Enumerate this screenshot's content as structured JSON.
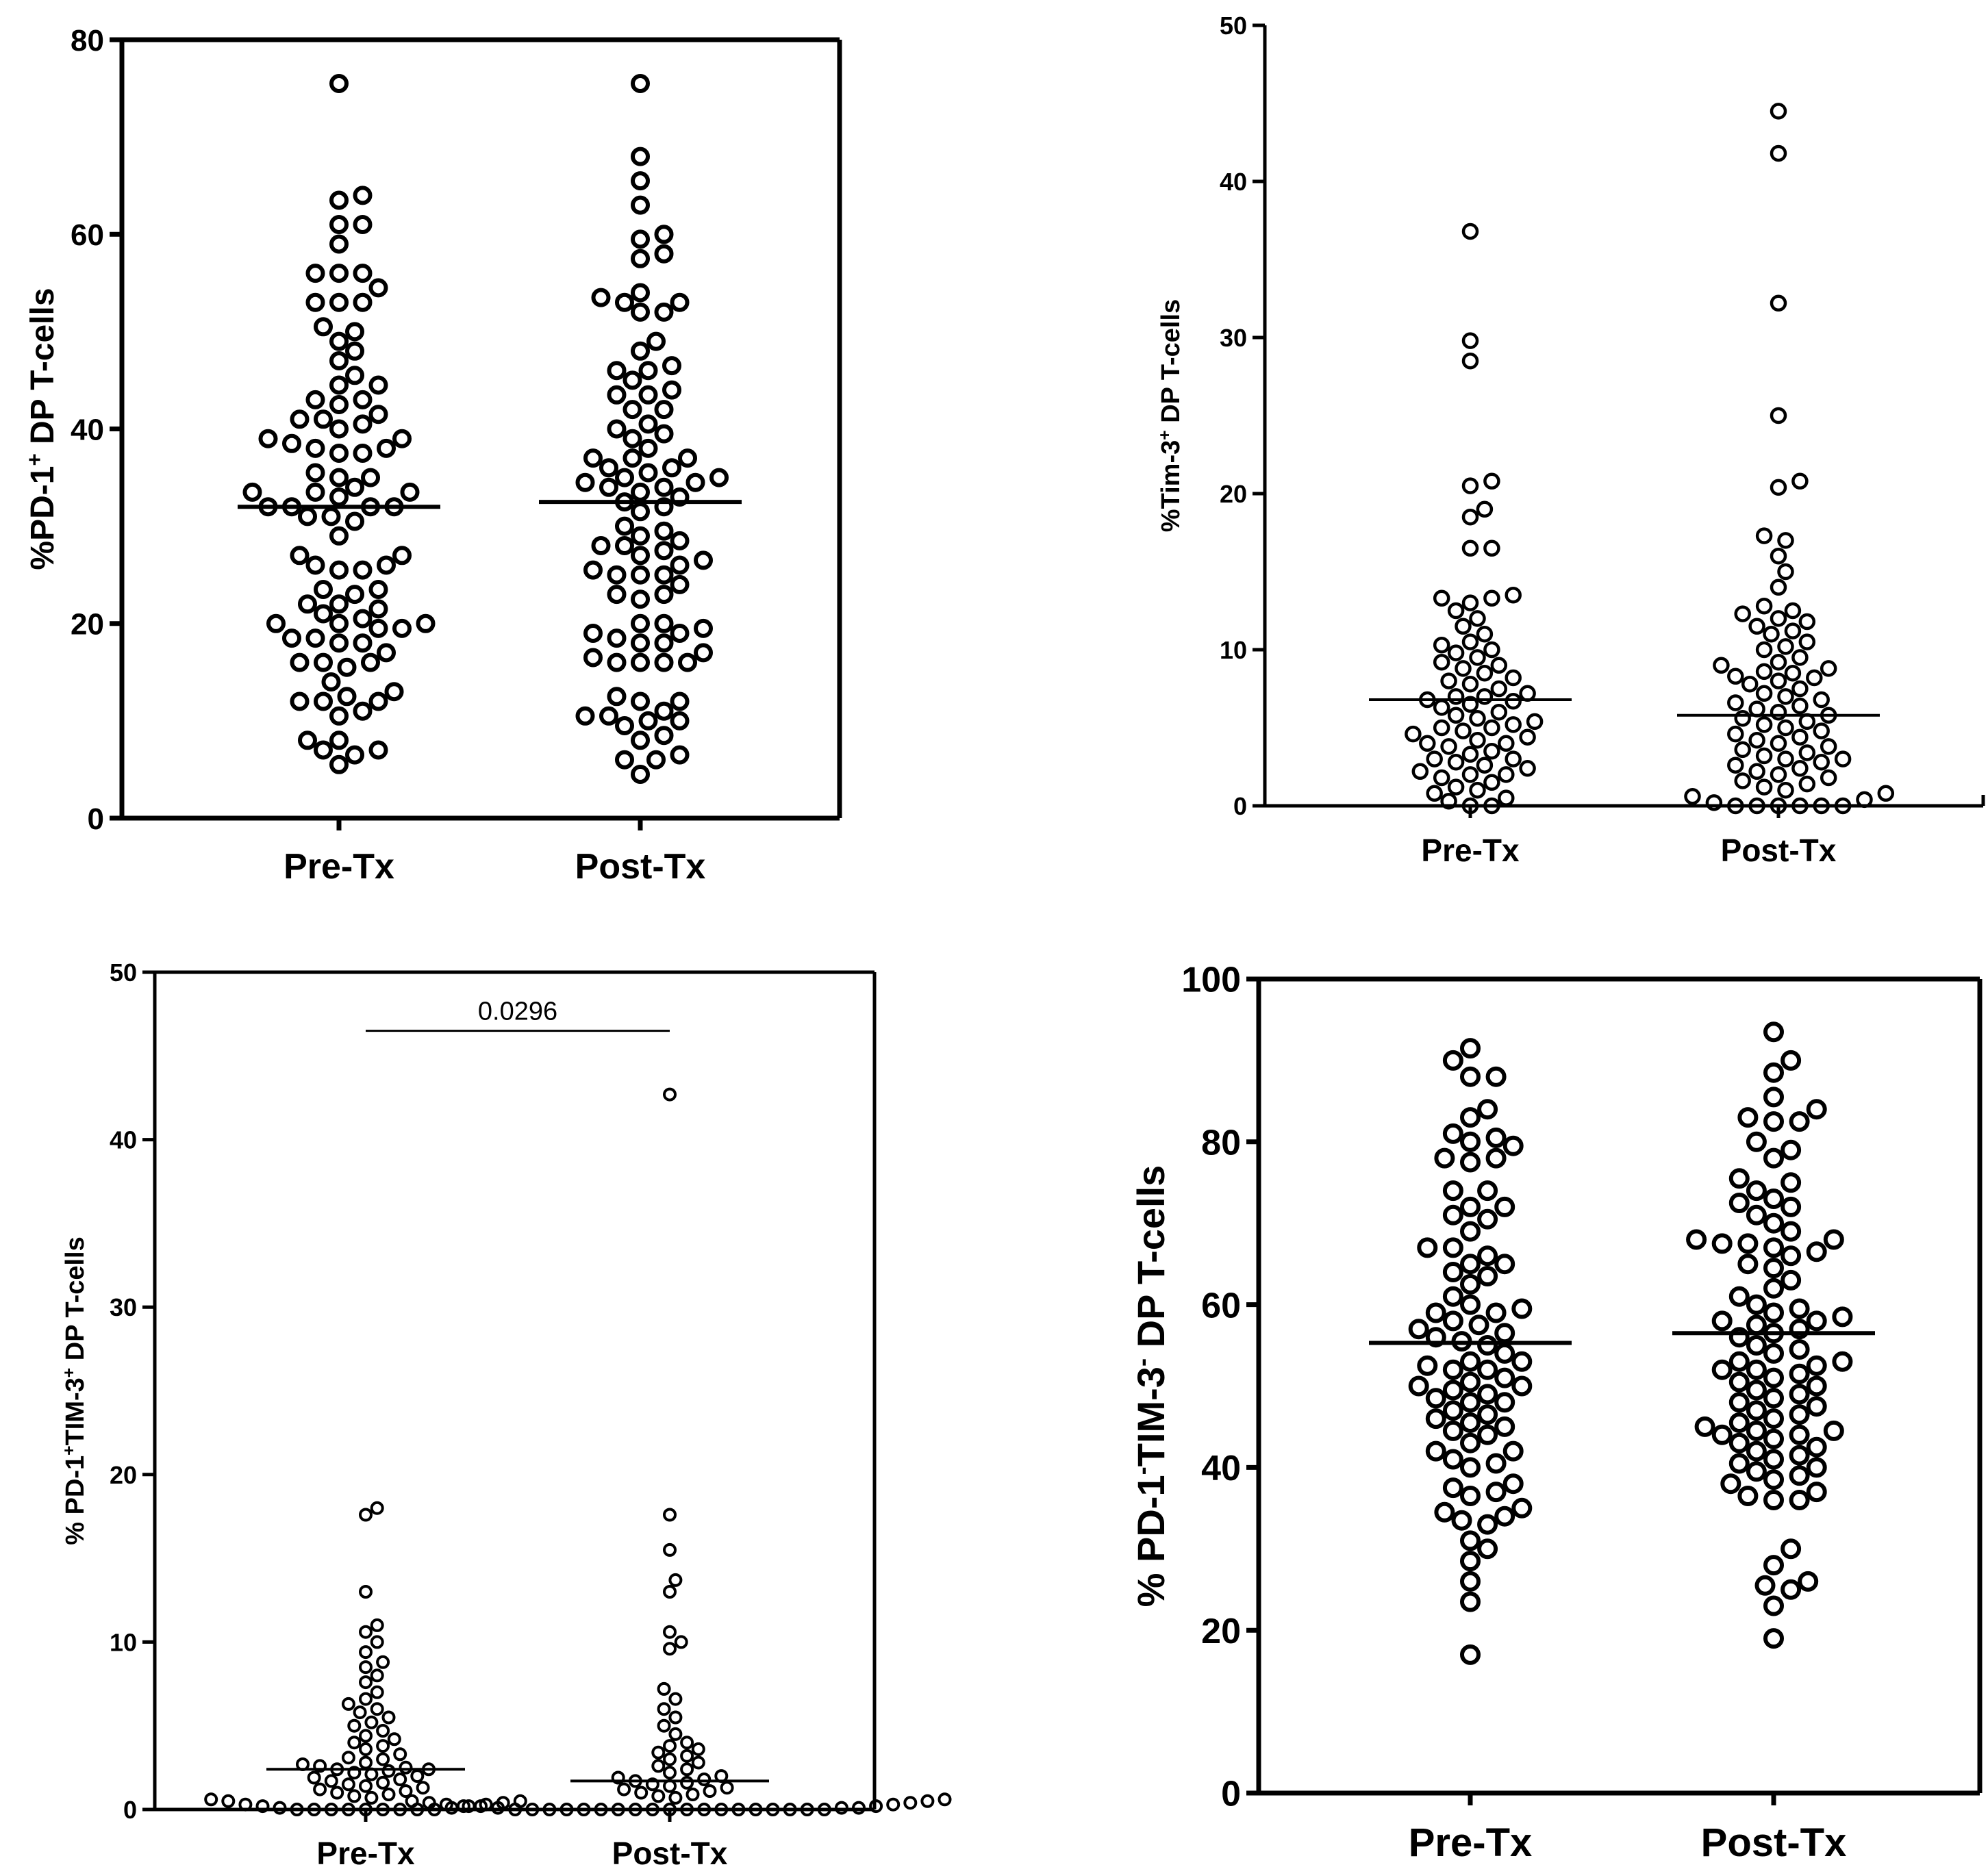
{
  "colors": {
    "ink": "#000000",
    "background": "#ffffff"
  },
  "chart_data": [
    {
      "type": "scatter",
      "title": "",
      "xlabel": "",
      "ylabel": {
        "prefix": "%PD-1",
        "sup": "+",
        "suffix": " DP T-cells"
      },
      "categories": [
        "Pre-Tx",
        "Post-Tx"
      ],
      "ylim": [
        0,
        80
      ],
      "yticks": [
        0,
        20,
        40,
        60,
        80
      ],
      "frame": "box",
      "medians": [
        32,
        32.5
      ],
      "series": [
        {
          "name": "Pre-Tx",
          "values": [
            75.5,
            64,
            63.5,
            61,
            61,
            59,
            56,
            56,
            56,
            54.5,
            53,
            53,
            53,
            50.5,
            50,
            49,
            48,
            47,
            45.5,
            44.5,
            44.5,
            43,
            43,
            42.5,
            41.5,
            41,
            41,
            40.5,
            40,
            39,
            39,
            38.5,
            38,
            38,
            37.5,
            37.5,
            35.5,
            35,
            35,
            34,
            33.5,
            33.5,
            33.5,
            33,
            32,
            32,
            32,
            32,
            31,
            31,
            30.5,
            29,
            27,
            27,
            26,
            26,
            25.5,
            25.5,
            23.5,
            23.5,
            23,
            22,
            22,
            21.5,
            21,
            20.5,
            20,
            20,
            20,
            19.5,
            19.5,
            18.5,
            18.5,
            18,
            18,
            17,
            16,
            16,
            16,
            15.5,
            14,
            13,
            12.5,
            12,
            12,
            12,
            11,
            10.5,
            8,
            8,
            7,
            7,
            6.5,
            5.5
          ]
        },
        {
          "name": "Post-Tx",
          "values": [
            75.5,
            68,
            65.5,
            63,
            60,
            59.5,
            58,
            57.5,
            54,
            53.5,
            53,
            53,
            52,
            52,
            49,
            48,
            46.5,
            46,
            46,
            45,
            44,
            43.5,
            43.5,
            42,
            42,
            40.5,
            40,
            39.5,
            39,
            38,
            37,
            37,
            37,
            36,
            36,
            35.5,
            35,
            35,
            34.5,
            34.5,
            34,
            34,
            33.5,
            33,
            32.5,
            32,
            31.5,
            30,
            29.5,
            29,
            28.5,
            28,
            28,
            27.5,
            27,
            26.5,
            26,
            25.5,
            25,
            25,
            25,
            24,
            23,
            23,
            22.5,
            20,
            20,
            19.5,
            19,
            19,
            18.5,
            18,
            18,
            17,
            16.5,
            16,
            16,
            16,
            16,
            12.5,
            12,
            12,
            11,
            10.5,
            10.5,
            10,
            10,
            9.5,
            8.5,
            8,
            6.5,
            6,
            6,
            4.5
          ]
        }
      ]
    },
    {
      "type": "scatter",
      "title": "",
      "xlabel": "",
      "ylabel": {
        "prefix": "%Tim-3",
        "sup": "+",
        "suffix": " DP T-cells"
      },
      "categories": [
        "Pre-Tx",
        "Post-Tx"
      ],
      "ylim": [
        0,
        50
      ],
      "yticks": [
        0,
        10,
        20,
        30,
        40,
        50
      ],
      "frame": "open",
      "medians": [
        6.8,
        5.8
      ],
      "series": [
        {
          "name": "Pre-Tx",
          "values": [
            36.8,
            29.8,
            28.5,
            20.8,
            20.5,
            19,
            18.5,
            16.5,
            16.5,
            13.5,
            13.3,
            13.3,
            13,
            12.5,
            12,
            11.5,
            11,
            10.5,
            10.3,
            10,
            9.8,
            9.5,
            9.2,
            9,
            8.8,
            8.5,
            8.2,
            8,
            7.8,
            7.5,
            7.2,
            7,
            7,
            6.8,
            6.7,
            6.5,
            6.3,
            6,
            5.8,
            5.6,
            5.4,
            5.2,
            5,
            5,
            4.8,
            4.6,
            4.4,
            4.2,
            4,
            4,
            3.8,
            3.5,
            3.3,
            3,
            3,
            2.8,
            2.6,
            2.4,
            2.2,
            2,
            2,
            1.8,
            1.5,
            1.2,
            1,
            0.8,
            0.5,
            0.3,
            0,
            0
          ]
        },
        {
          "name": "Post-Tx",
          "values": [
            44.5,
            41.8,
            32.2,
            25,
            20.8,
            20.4,
            17.3,
            17,
            16,
            15,
            14,
            12.8,
            12.5,
            12.3,
            12,
            11.8,
            11.5,
            11.2,
            11,
            10.5,
            10.2,
            10,
            9.5,
            9.2,
            9,
            8.8,
            8.6,
            8.5,
            8.3,
            8.2,
            8,
            7.8,
            7.5,
            7.2,
            7,
            6.8,
            6.6,
            6.4,
            6.2,
            6,
            5.8,
            5.6,
            5.4,
            5.2,
            5,
            4.8,
            4.6,
            4.4,
            4.2,
            4,
            3.8,
            3.6,
            3.4,
            3.2,
            3,
            3,
            2.8,
            2.6,
            2.4,
            2.2,
            2,
            1.8,
            1.6,
            1.4,
            1.2,
            1,
            0.8,
            0.6,
            0.4,
            0.2,
            0,
            0,
            0,
            0,
            0,
            0
          ]
        }
      ]
    },
    {
      "type": "scatter",
      "title": "",
      "xlabel": "",
      "ylabel": {
        "prefix": "% PD-1",
        "sup": "+",
        "mid": "TIM-3",
        "sup2": "+",
        "suffix": " DP T-cells"
      },
      "categories": [
        "Pre-Tx",
        "Post-Tx"
      ],
      "ylim": [
        0,
        50
      ],
      "yticks": [
        0,
        10,
        20,
        30,
        40,
        50
      ],
      "frame": "box",
      "medians": [
        2.4,
        1.7
      ],
      "significance": {
        "label": "0.0296",
        "y": 46.5
      },
      "series": [
        {
          "name": "Pre-Tx",
          "values": [
            18,
            17.6,
            13,
            11,
            10.6,
            10,
            9.4,
            8.8,
            8.5,
            8,
            7.6,
            7,
            6.6,
            6.3,
            6,
            5.8,
            5.5,
            5.2,
            5,
            4.7,
            4.4,
            4.2,
            4,
            3.8,
            3.6,
            3.3,
            3.1,
            3,
            2.8,
            2.7,
            2.6,
            2.5,
            2.4,
            2.4,
            2.3,
            2.2,
            2.1,
            2,
            1.9,
            1.8,
            1.7,
            1.6,
            1.5,
            1.4,
            1.3,
            1.2,
            1.1,
            1,
            0.9,
            0.8,
            0.7,
            0.6,
            0.5,
            0.5,
            0.4,
            0.3,
            0.3,
            0.2,
            0.2,
            0.1,
            0.1,
            0,
            0,
            0,
            0,
            0,
            0,
            0,
            0,
            0
          ]
        },
        {
          "name": "Post-Tx",
          "values": [
            42.7,
            17.6,
            15.5,
            13.7,
            13,
            10.6,
            10,
            9.6,
            7.2,
            6.6,
            6,
            5.5,
            5,
            4.5,
            4,
            3.8,
            3.6,
            3.4,
            3.2,
            3,
            2.8,
            2.6,
            2.4,
            2.2,
            2,
            1.9,
            1.8,
            1.7,
            1.6,
            1.5,
            1.4,
            1.3,
            1.2,
            1.1,
            1,
            0.9,
            0.8,
            0.7,
            0.6,
            0.5,
            0.5,
            0.4,
            0.4,
            0.3,
            0.3,
            0.2,
            0.2,
            0.2,
            0.1,
            0.1,
            0.1,
            0,
            0,
            0,
            0,
            0,
            0,
            0,
            0,
            0,
            0,
            0,
            0,
            0,
            0,
            0,
            0,
            0,
            0,
            0
          ]
        }
      ]
    },
    {
      "type": "scatter",
      "title": "",
      "xlabel": "",
      "ylabel": {
        "prefix": "% PD-1",
        "sup": "-",
        "mid": "TIM-3",
        "sup2": "-",
        "suffix": " DP T-cells"
      },
      "categories": [
        "Pre-Tx",
        "Post-Tx"
      ],
      "ylim": [
        0,
        100
      ],
      "yticks": [
        0,
        20,
        40,
        60,
        80,
        100
      ],
      "frame": "box",
      "medians": [
        55.3,
        56.5
      ],
      "series": [
        {
          "name": "Pre-Tx",
          "values": [
            91.5,
            90,
            88,
            88,
            84,
            83,
            81,
            80.5,
            80,
            79.5,
            78,
            78,
            77.5,
            74,
            74,
            72,
            72,
            71,
            70.5,
            69,
            67,
            67,
            66,
            65,
            65,
            64,
            63.5,
            62.5,
            61,
            60,
            59.5,
            59,
            59,
            58,
            57.5,
            57,
            56.5,
            56,
            55.5,
            55,
            54,
            53,
            53,
            52.5,
            52,
            52,
            51,
            50.5,
            50,
            50,
            49.5,
            49,
            48.5,
            48,
            48,
            47,
            46.5,
            46,
            45.5,
            45,
            44.5,
            44,
            43,
            42,
            42,
            41,
            40.5,
            40,
            38,
            37.5,
            37,
            36.5,
            35,
            34.5,
            34,
            33.5,
            33,
            31,
            30,
            28.5,
            26,
            23.5,
            17
          ]
        },
        {
          "name": "Post-Tx",
          "values": [
            93.5,
            90,
            88.5,
            85.5,
            84,
            83,
            82.5,
            82.5,
            80,
            79,
            78,
            75.5,
            75,
            74,
            73,
            72.5,
            72,
            71,
            70,
            69,
            68,
            68,
            67.5,
            67.5,
            67,
            66.5,
            66,
            65,
            64.5,
            63,
            62,
            61,
            60,
            59.5,
            59,
            58.5,
            58,
            58,
            57.5,
            57,
            56.5,
            56,
            55,
            54.5,
            54,
            53,
            53,
            52.5,
            52,
            52,
            51.5,
            51,
            50.5,
            50,
            49.5,
            49,
            48.5,
            48,
            47.5,
            47,
            46.5,
            46,
            45.5,
            45,
            44.5,
            44.5,
            44,
            44,
            43.5,
            43,
            42.5,
            42,
            41.5,
            41,
            40.5,
            40,
            39.5,
            39,
            38.5,
            38,
            37,
            36.5,
            36,
            36,
            30,
            28,
            26,
            25.5,
            25,
            23,
            19
          ]
        }
      ]
    }
  ]
}
